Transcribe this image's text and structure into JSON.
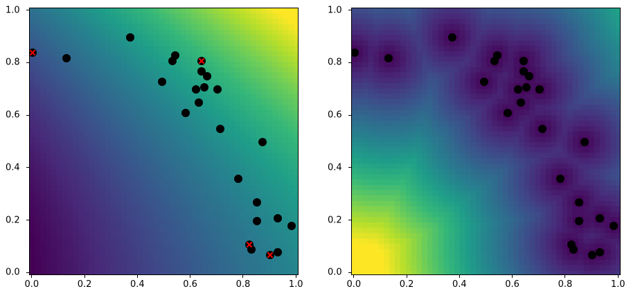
{
  "chart_data": [
    {
      "type": "heatmap",
      "title": "",
      "xlabel": "",
      "ylabel": "",
      "xlim": [
        -0.01,
        1.01
      ],
      "ylim": [
        -0.01,
        1.01
      ],
      "xticks": [
        "0.0",
        "0.2",
        "0.4",
        "0.6",
        "0.8",
        "1.0"
      ],
      "yticks": [
        "0.0",
        "0.2",
        "0.4",
        "0.6",
        "0.8",
        "1.0"
      ],
      "colormap": "viridis",
      "grid": false,
      "heatmap_description": "Smooth field increasing from bottom-left (dark purple) to top-right (yellow)",
      "scatter_points": {
        "color": "#000000",
        "x": [
          0.0,
          0.13,
          0.37,
          0.53,
          0.54,
          0.64,
          0.64,
          0.66,
          0.49,
          0.62,
          0.65,
          0.7,
          0.63,
          0.58,
          0.71,
          0.87,
          0.78,
          0.85,
          0.85,
          0.93,
          0.98,
          0.82,
          0.83,
          0.9,
          0.93
        ],
        "y": [
          0.84,
          0.82,
          0.9,
          0.81,
          0.83,
          0.81,
          0.77,
          0.75,
          0.73,
          0.7,
          0.71,
          0.7,
          0.65,
          0.61,
          0.55,
          0.5,
          0.36,
          0.27,
          0.2,
          0.21,
          0.18,
          0.11,
          0.09,
          0.07,
          0.08
        ]
      },
      "highlighted_points": {
        "marker": "x",
        "color": "#ff0000",
        "x": [
          0.0,
          0.64,
          0.82,
          0.9
        ],
        "y": [
          0.84,
          0.81,
          0.11,
          0.07
        ]
      }
    },
    {
      "type": "heatmap",
      "title": "",
      "xlabel": "",
      "ylabel": "",
      "xlim": [
        -0.01,
        1.01
      ],
      "ylim": [
        -0.01,
        1.01
      ],
      "xticks": [
        "0.0",
        "0.2",
        "0.4",
        "0.6",
        "0.8",
        "1.0"
      ],
      "yticks": [
        "0.0",
        "0.2",
        "0.4",
        "0.6",
        "0.8",
        "1.0"
      ],
      "colormap": "viridis",
      "grid": false,
      "heatmap_description": "Uncertainty-like field: yellow at bottom-left corner, dark purple near data points, teal at top-right",
      "scatter_points": {
        "color": "#000000",
        "x": [
          0.0,
          0.13,
          0.37,
          0.53,
          0.54,
          0.64,
          0.64,
          0.66,
          0.49,
          0.62,
          0.65,
          0.7,
          0.63,
          0.58,
          0.71,
          0.87,
          0.78,
          0.85,
          0.85,
          0.93,
          0.98,
          0.82,
          0.83,
          0.9,
          0.93
        ],
        "y": [
          0.84,
          0.82,
          0.9,
          0.81,
          0.83,
          0.81,
          0.77,
          0.75,
          0.73,
          0.7,
          0.71,
          0.7,
          0.65,
          0.61,
          0.55,
          0.5,
          0.36,
          0.27,
          0.2,
          0.21,
          0.18,
          0.11,
          0.09,
          0.07,
          0.08
        ]
      }
    }
  ]
}
